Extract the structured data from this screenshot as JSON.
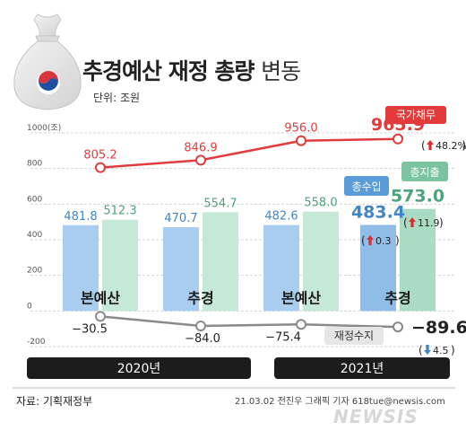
{
  "header": {
    "title_bold": "추경예산 재정 총량",
    "title_light": "변동",
    "unit": "단위: 조원"
  },
  "footer": {
    "source": "자료: 기획재정부",
    "credit": "21.03.02 전진우 그래픽 기자 618tue@newsis.com",
    "watermark": "NEWSIS"
  },
  "colors": {
    "debt_line": "#e23b3b",
    "revenue_bar": "#a9cdee",
    "revenue_text": "#3f86c9",
    "revenue_bar_highlight": "#8fbde8",
    "expenditure_bar": "#c6e8d7",
    "expenditure_text": "#4da37c",
    "expenditure_bar_highlight": "#a9dcc2",
    "balance_line": "#8a8a8a",
    "year_band": "#1c1c1c",
    "up_arrow": "#e02b2b",
    "down_arrow": "#3f86c9"
  },
  "chart_data": {
    "type": "bar",
    "categories": [
      "본예산",
      "추경",
      "본예산",
      "추경"
    ],
    "year_groups": [
      {
        "label": "2020년",
        "categories": [
          0,
          1
        ]
      },
      {
        "label": "2021년",
        "categories": [
          2,
          3
        ]
      }
    ],
    "y_ticks": [
      "1000(조)",
      "800",
      "600",
      "400",
      "200",
      "0",
      "-200"
    ],
    "ylim": [
      -200,
      1000
    ],
    "series": [
      {
        "name": "총수입",
        "kind": "bar",
        "values": [
          481.8,
          470.7,
          482.6,
          483.4
        ],
        "labels": [
          "481.8",
          "470.7",
          "482.6",
          "483.4"
        ]
      },
      {
        "name": "총지출",
        "kind": "bar",
        "values": [
          512.3,
          554.7,
          558.0,
          573.0
        ],
        "labels": [
          "512.3",
          "554.7",
          "558.0",
          "573.0"
        ]
      },
      {
        "name": "국가채무",
        "kind": "line",
        "values": [
          805.2,
          846.9,
          956.0,
          965.9
        ],
        "labels": [
          "805.2",
          "846.9",
          "956.0",
          "965.9"
        ]
      },
      {
        "name": "재정수지",
        "kind": "line",
        "values": [
          -30.5,
          -84.0,
          -75.4,
          -89.6
        ],
        "labels": [
          "−30.5",
          "−84.0",
          "−75.4",
          "−89.6"
        ]
      }
    ],
    "annotations": {
      "debt_change": "48.2%",
      "revenue_change": "0.3",
      "expenditure_change": "11.9",
      "balance_change": "4.5"
    }
  }
}
